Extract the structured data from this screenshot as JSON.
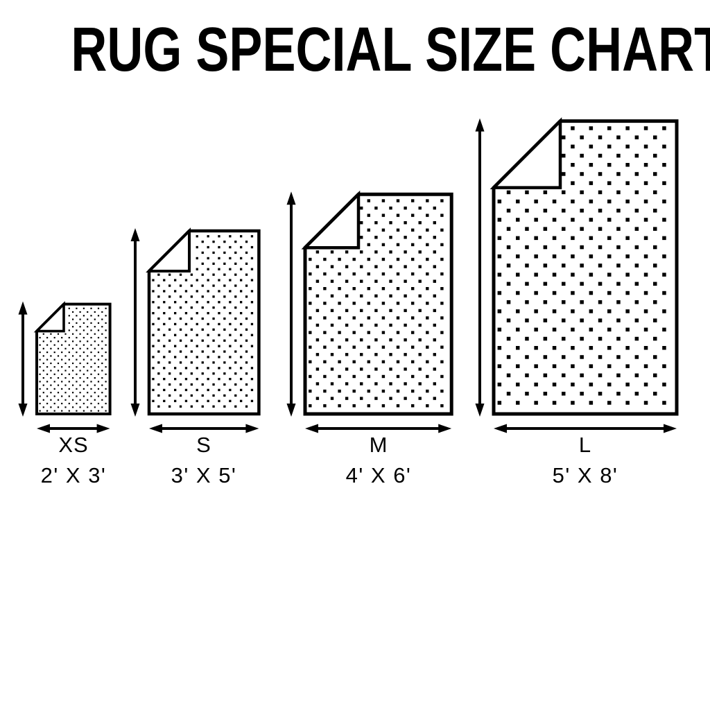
{
  "title": "RUG SPECIAL SIZE CHART",
  "colors": {
    "ink": "#000000",
    "paper": "#ffffff"
  },
  "rug_pattern": "checkerboard-square-dots",
  "rugs": [
    {
      "size_label": "XS",
      "dimensions_label": "2' X 3'",
      "width_ft": 2,
      "height_ft": 3
    },
    {
      "size_label": "S",
      "dimensions_label": "3' X 5'",
      "width_ft": 3,
      "height_ft": 5
    },
    {
      "size_label": "M",
      "dimensions_label": "4' X 6'",
      "width_ft": 4,
      "height_ft": 6
    },
    {
      "size_label": "L",
      "dimensions_label": "5' X 8'",
      "width_ft": 5,
      "height_ft": 8
    }
  ],
  "chart_data": {
    "type": "table",
    "title": "RUG SPECIAL SIZE CHART",
    "categories": [
      "XS",
      "S",
      "M",
      "L"
    ],
    "series": [
      {
        "name": "width_ft",
        "values": [
          2,
          3,
          4,
          5
        ]
      },
      {
        "name": "height_ft",
        "values": [
          3,
          5,
          6,
          8
        ]
      }
    ],
    "labels": [
      "2' X 3'",
      "3' X 5'",
      "4' X 6'",
      "5' X 8'"
    ]
  }
}
